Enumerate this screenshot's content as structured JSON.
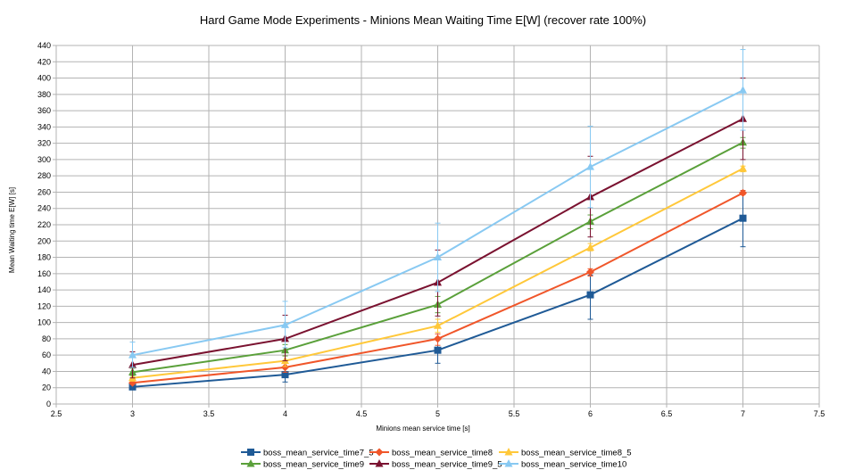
{
  "chart_data": {
    "type": "line",
    "title": "Hard Game Mode Experiments - Minions Mean Waiting Time E[W] (recover rate 100%)",
    "xlabel": "Minions mean service time [s]",
    "ylabel": "Mean Waiting time E[W] [s]",
    "xlim": [
      2.5,
      7.5
    ],
    "ylim": [
      0,
      440
    ],
    "x_ticks": [
      2.5,
      3,
      3.5,
      4,
      4.5,
      5,
      5.5,
      6,
      6.5,
      7,
      7.5
    ],
    "y_ticks": [
      0,
      20,
      40,
      60,
      80,
      100,
      120,
      140,
      160,
      180,
      200,
      220,
      240,
      260,
      280,
      300,
      320,
      340,
      360,
      380,
      400,
      420,
      440
    ],
    "grid": true,
    "legend_position": "bottom",
    "x": [
      3,
      4,
      5,
      6,
      7
    ],
    "series": [
      {
        "name": "boss_mean_service_time7_5",
        "color": "#1f5a96",
        "marker": "square",
        "values": [
          21,
          36,
          66,
          134,
          228
        ],
        "err_low": [
          18,
          27,
          50,
          104,
          193
        ],
        "err_high": [
          25,
          44,
          80,
          158,
          262
        ]
      },
      {
        "name": "boss_mean_service_time8",
        "color": "#f0562a",
        "marker": "diamond",
        "values": [
          26,
          45,
          80,
          162,
          259
        ],
        "err_low": [
          24,
          39,
          72,
          157,
          257
        ],
        "err_high": [
          31,
          52,
          86,
          166,
          262
        ]
      },
      {
        "name": "boss_mean_service_time8_5",
        "color": "#ffc83a",
        "marker": "triangle",
        "values": [
          32,
          53,
          96,
          192,
          289
        ],
        "err_low": [
          28,
          46,
          88,
          188,
          285
        ],
        "err_high": [
          37,
          59,
          104,
          197,
          292
        ]
      },
      {
        "name": "boss_mean_service_time9",
        "color": "#5aa03a",
        "marker": "triangle",
        "values": [
          39,
          66,
          122,
          224,
          321
        ],
        "err_low": [
          35,
          59,
          112,
          215,
          314
        ],
        "err_high": [
          44,
          73,
          132,
          232,
          327
        ]
      },
      {
        "name": "boss_mean_service_time9_5",
        "color": "#7a1230",
        "marker": "triangle",
        "values": [
          48,
          80,
          149,
          254,
          350
        ],
        "err_low": [
          32,
          53,
          108,
          205,
          300
        ],
        "err_high": [
          64,
          109,
          189,
          304,
          400
        ]
      },
      {
        "name": "boss_mean_service_time10",
        "color": "#88c9f2",
        "marker": "triangle",
        "values": [
          60,
          97,
          180,
          291,
          385
        ],
        "err_low": [
          45,
          69,
          138,
          241,
          336
        ],
        "err_high": [
          76,
          126,
          222,
          341,
          435
        ]
      }
    ]
  }
}
